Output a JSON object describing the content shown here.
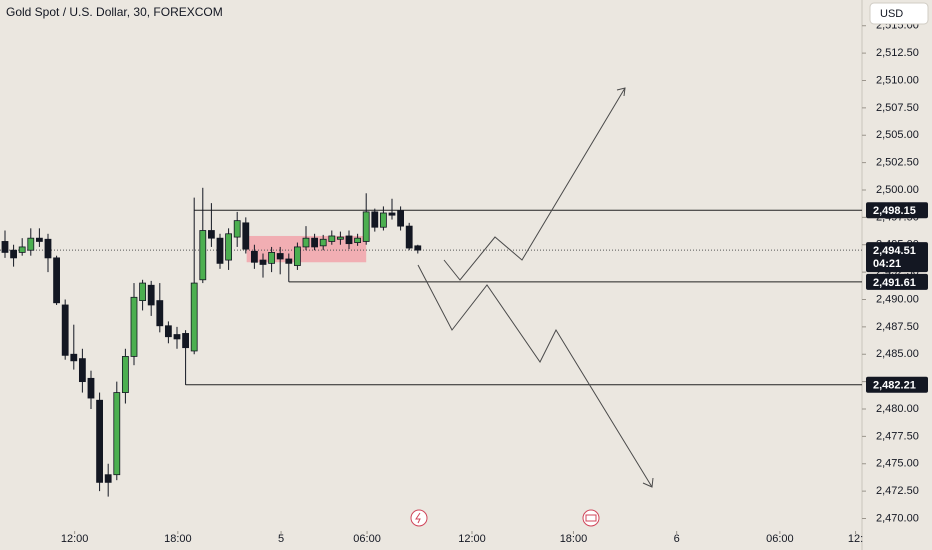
{
  "chart_data": {
    "type": "candlestick",
    "title": "Gold Spot / U.S. Dollar, 30, FOREXCOM",
    "currency": "USD",
    "up_color": "#4caf50",
    "down_color": "#131722",
    "x": [
      0,
      1,
      2,
      3,
      4,
      5,
      6,
      7,
      8,
      9,
      10,
      11,
      12,
      13,
      14,
      15,
      16,
      17,
      18,
      19,
      20,
      21,
      22,
      23,
      24,
      25,
      26,
      27,
      28,
      29,
      30,
      31,
      32,
      33,
      34,
      35,
      36,
      37,
      38,
      39,
      40,
      41,
      42,
      43,
      44,
      45,
      46,
      47,
      48
    ],
    "open": [
      2495.3,
      2494.5,
      2494.3,
      2494.5,
      2495.6,
      2495.5,
      2493.8,
      2489.5,
      2485,
      2484.6,
      2482.8,
      2480.8,
      2474,
      2474.0,
      2481.5,
      2484.8,
      2489.9,
      2491.3,
      2489.9,
      2487.6,
      2486.8,
      2486.9,
      2485.3,
      2491.8,
      2496.3,
      2495.6,
      2493.6,
      2495.7,
      2497,
      2494.4,
      2493.6,
      2493.3,
      2494.2,
      2493.7,
      2493.1,
      2494.8,
      2495.6,
      2494.9,
      2495.3,
      2495.5,
      2495.8,
      2495.2,
      2495.3,
      2498,
      2496.6,
      2497.9,
      2498.1,
      2496.7,
      2494.9
    ],
    "high": [
      2496.3,
      2495,
      2495.6,
      2496.5,
      2496.5,
      2496,
      2494,
      2490,
      2487.7,
      2485.5,
      2483.5,
      2481.5,
      2475,
      2482.5,
      2485.5,
      2491.5,
      2491.8,
      2491.7,
      2491.5,
      2488,
      2487.5,
      2487.2,
      2499.3,
      2500.2,
      2498.8,
      2496,
      2496.5,
      2498,
      2497.5,
      2495,
      2494.2,
      2494.8,
      2494.8,
      2494.2,
      2495.2,
      2496.7,
      2496,
      2495.9,
      2496.3,
      2496.2,
      2496.3,
      2496,
      2499.7,
      2498.3,
      2498.5,
      2499.2,
      2498.5,
      2497,
      2495
    ],
    "low": [
      2493.8,
      2493,
      2494,
      2494,
      2494.8,
      2492.5,
      2489.5,
      2484.5,
      2483.6,
      2481.5,
      2480,
      2472.5,
      2472,
      2473.5,
      2480.5,
      2484,
      2489,
      2488.5,
      2487,
      2486,
      2485.5,
      2482.2,
      2485,
      2491.5,
      2494.8,
      2492.8,
      2492.7,
      2494.8,
      2494.2,
      2492.8,
      2492,
      2492.5,
      2492.3,
      2491.61,
      2492.7,
      2494.5,
      2494.5,
      2494.5,
      2495,
      2495,
      2494.6,
      2494.9,
      2495,
      2496.2,
      2496.3,
      2497.3,
      2496.3,
      2494.5,
      2494.2
    ],
    "close": [
      2494.3,
      2493.8,
      2494.8,
      2495.6,
      2495.3,
      2493.8,
      2489.7,
      2484.9,
      2484.4,
      2482.5,
      2481,
      2473.3,
      2473.3,
      2481.5,
      2484.8,
      2490.2,
      2491.5,
      2489.5,
      2487.6,
      2486.6,
      2486.4,
      2485.6,
      2491.5,
      2496.3,
      2495.6,
      2493.3,
      2496,
      2497.2,
      2494.6,
      2493.4,
      2493.2,
      2494.3,
      2493.7,
      2493.3,
      2494.8,
      2495.6,
      2494.8,
      2495.5,
      2495.8,
      2495.7,
      2495.1,
      2495.6,
      2498,
      2496.6,
      2497.9,
      2497.7,
      2496.7,
      2494.7,
      2494.51
    ],
    "xlim": [
      -0.58,
      99.65
    ],
    "ylim": [
      2468.95,
      2517.35
    ],
    "xticks": [
      {
        "value": 8.1,
        "label": "12:00"
      },
      {
        "value": 20.1,
        "label": "18:00"
      },
      {
        "value": 32.1,
        "label": "5"
      },
      {
        "value": 42.1,
        "label": "06:00"
      },
      {
        "value": 54.3,
        "label": "12:00"
      },
      {
        "value": 66.1,
        "label": "18:00"
      },
      {
        "value": 78.1,
        "label": "6"
      },
      {
        "value": 90.1,
        "label": "06:00"
      },
      {
        "value": 98.9,
        "label": "12:"
      }
    ],
    "yticks": [
      {
        "value": 2470,
        "label": "2,470.00"
      },
      {
        "value": 2472.5,
        "label": "2,472.50"
      },
      {
        "value": 2475,
        "label": "2,475.00"
      },
      {
        "value": 2477.5,
        "label": "2,477.50"
      },
      {
        "value": 2480,
        "label": "2,480.00"
      },
      {
        "value": 2482.5,
        "label": "2,482.50"
      },
      {
        "value": 2485,
        "label": "2,485.00"
      },
      {
        "value": 2487.5,
        "label": "2,487.50"
      },
      {
        "value": 2490,
        "label": "2,490.00"
      },
      {
        "value": 2492.5,
        "label": "2,492.50"
      },
      {
        "value": 2495,
        "label": "2,495.00"
      },
      {
        "value": 2497.5,
        "label": "2,497.50"
      },
      {
        "value": 2500,
        "label": "2,500.00"
      },
      {
        "value": 2502.5,
        "label": "2,502.50"
      },
      {
        "value": 2505,
        "label": "2,505.00"
      },
      {
        "value": 2507.5,
        "label": "2,507.50"
      },
      {
        "value": 2510,
        "label": "2,510.00"
      },
      {
        "value": 2512.5,
        "label": "2,512.50"
      },
      {
        "value": 2515,
        "label": "2,515.00"
      }
    ],
    "levels": [
      {
        "value": 2498.15,
        "label": "2,498.15",
        "from": 22
      },
      {
        "value": 2491.61,
        "label": "2,491.61",
        "from": 33
      },
      {
        "value": 2482.21,
        "label": "2,482.21",
        "from": 21
      }
    ],
    "last_price": {
      "value": 2494.51,
      "label": "2,494.51",
      "countdown": "04:21"
    },
    "zone": {
      "x": [
        28.1,
        42
      ],
      "y": [
        2493.4,
        2495.8
      ],
      "color": "#f2a3aa"
    }
  }
}
